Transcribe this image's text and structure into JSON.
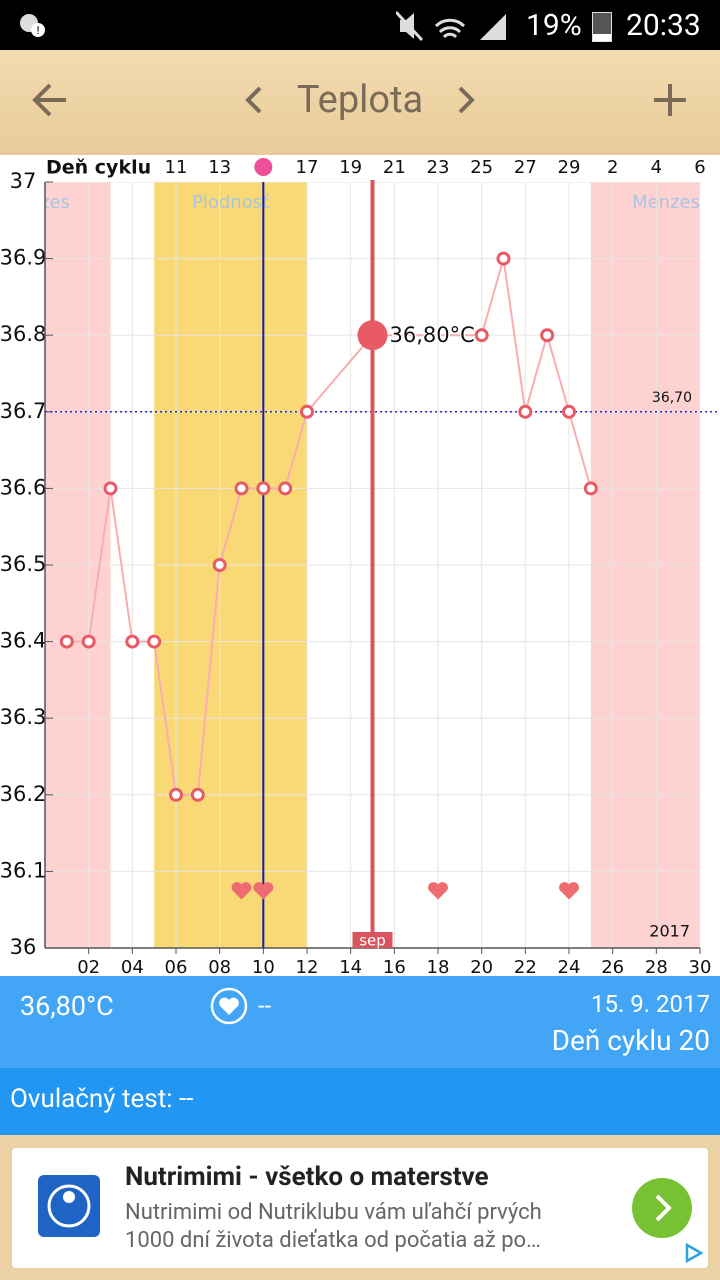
{
  "status_bar": {
    "battery": "19%",
    "time": "20:33"
  },
  "header": {
    "title": "Teplota"
  },
  "chart_data": {
    "type": "line",
    "top_axis_label": "Deň cyklu",
    "cycle_days": {
      "x": [
        6,
        8,
        10,
        12,
        14,
        16,
        18,
        20,
        22,
        24,
        26,
        28,
        30
      ],
      "labels": [
        11,
        13,
        null,
        17,
        19,
        21,
        23,
        25,
        27,
        29,
        2,
        4,
        6
      ]
    },
    "x": [
      1,
      2,
      3,
      4,
      5,
      6,
      7,
      8,
      9,
      10,
      11,
      12,
      15,
      20,
      21,
      22,
      23,
      24,
      25
    ],
    "values": [
      36.4,
      36.4,
      36.6,
      36.4,
      36.4,
      36.2,
      36.2,
      36.5,
      36.6,
      36.6,
      36.6,
      36.7,
      36.8,
      36.8,
      36.9,
      36.7,
      36.8,
      36.7,
      36.6
    ],
    "color": "#e85a64",
    "line_color": "#f7aeb0",
    "xlim": [
      0,
      30
    ],
    "xticks": [
      {
        "value": 2,
        "label": "02"
      },
      {
        "value": 4,
        "label": "04"
      },
      {
        "value": 6,
        "label": "06"
      },
      {
        "value": 8,
        "label": "08"
      },
      10,
      12,
      14,
      16,
      18,
      20,
      22,
      24,
      26,
      28,
      30
    ],
    "ylim": [
      36,
      37
    ],
    "yticks": [
      36,
      36.1,
      36.2,
      36.3,
      36.4,
      36.5,
      36.6,
      36.7,
      36.8,
      36.9,
      37
    ],
    "grid": true,
    "bands": [
      {
        "label": "Menzes",
        "from": 0,
        "to": 3,
        "color": "#ffd2d2"
      },
      {
        "label": "Plodnosť",
        "from": 5,
        "to": 12,
        "color": "#f9d976"
      },
      {
        "label": "Menzes",
        "from": 25,
        "to": 30,
        "color": "#ffd2d2"
      }
    ],
    "reference_line": {
      "value": 36.7,
      "label": "36,70"
    },
    "ovulation_x": 10,
    "highlight": {
      "x": 15,
      "value": 36.8,
      "label": "36,80°C",
      "month": "sep"
    },
    "hearts_x": [
      9,
      10,
      18,
      24
    ],
    "year_label": "2017"
  },
  "info": {
    "temperature": "36,80°C",
    "heart_value": "--",
    "date": "15. 9. 2017",
    "cycle_day": "Deň cyklu 20",
    "ovulation_test": "Ovulačný test: --"
  },
  "ad": {
    "title": "Nutrimimi - všetko o materstve",
    "lines": [
      "Nutrimimi od Nutriklubu vám uľahčí prvých",
      "1000 dní života dieťatka od počatia až po…"
    ]
  }
}
